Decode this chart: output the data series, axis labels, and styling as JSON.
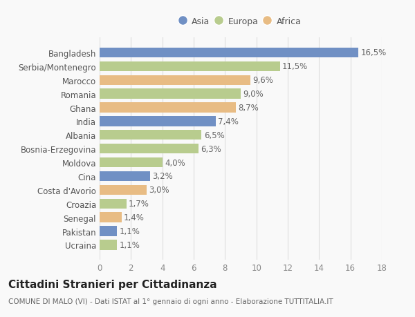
{
  "countries": [
    "Bangladesh",
    "Serbia/Montenegro",
    "Marocco",
    "Romania",
    "Ghana",
    "India",
    "Albania",
    "Bosnia-Erzegovina",
    "Moldova",
    "Cina",
    "Costa d'Avorio",
    "Croazia",
    "Senegal",
    "Pakistan",
    "Ucraina"
  ],
  "values": [
    16.5,
    11.5,
    9.6,
    9.0,
    8.7,
    7.4,
    6.5,
    6.3,
    4.0,
    3.2,
    3.0,
    1.7,
    1.4,
    1.1,
    1.1
  ],
  "labels": [
    "16,5%",
    "11,5%",
    "9,6%",
    "9,0%",
    "8,7%",
    "7,4%",
    "6,5%",
    "6,3%",
    "4,0%",
    "3,2%",
    "3,0%",
    "1,7%",
    "1,4%",
    "1,1%",
    "1,1%"
  ],
  "continents": [
    "Asia",
    "Europa",
    "Africa",
    "Europa",
    "Africa",
    "Asia",
    "Europa",
    "Europa",
    "Europa",
    "Asia",
    "Africa",
    "Europa",
    "Africa",
    "Asia",
    "Europa"
  ],
  "colors": {
    "Asia": "#7090c4",
    "Europa": "#b8cc8e",
    "Africa": "#e8bc84"
  },
  "xlim": [
    0,
    18
  ],
  "xticks": [
    0,
    2,
    4,
    6,
    8,
    10,
    12,
    14,
    16,
    18
  ],
  "title": "Cittadini Stranieri per Cittadinanza",
  "subtitle": "COMUNE DI MALO (VI) - Dati ISTAT al 1° gennaio di ogni anno - Elaborazione TUTTITALIA.IT",
  "background_color": "#f9f9f9",
  "bar_height": 0.72,
  "label_fontsize": 8.5,
  "tick_fontsize": 8.5,
  "title_fontsize": 11,
  "subtitle_fontsize": 7.5
}
